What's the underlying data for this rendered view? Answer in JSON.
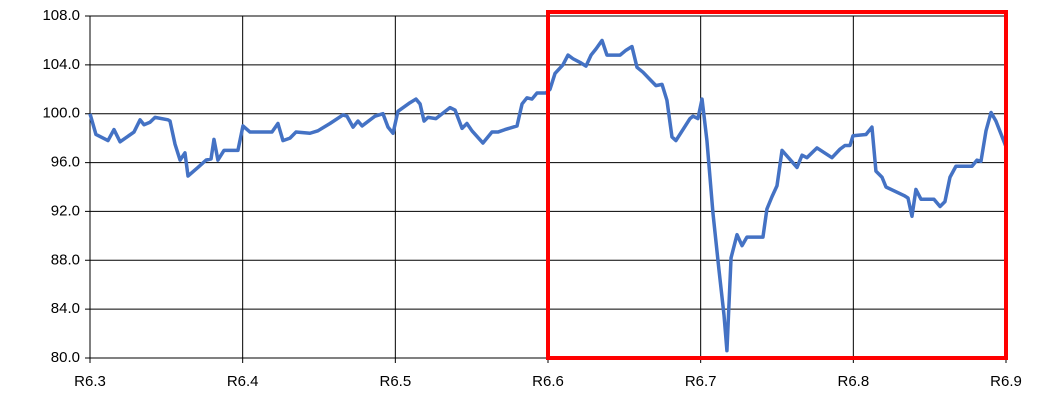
{
  "chart_data": {
    "type": "line",
    "xlim": [
      6.3,
      6.9
    ],
    "xticks": [
      {
        "value": 6.3,
        "label": "R6.3"
      },
      {
        "value": 6.4,
        "label": "R6.4"
      },
      {
        "value": 6.5,
        "label": "R6.5"
      },
      {
        "value": 6.6,
        "label": "R6.6"
      },
      {
        "value": 6.7,
        "label": "R6.7"
      },
      {
        "value": 6.8,
        "label": "R6.8"
      },
      {
        "value": 6.9,
        "label": "R6.9"
      }
    ],
    "ylim": [
      80,
      108
    ],
    "yticks": [
      {
        "value": 80,
        "label": "80.0"
      },
      {
        "value": 84,
        "label": "84.0"
      },
      {
        "value": 88,
        "label": "88.0"
      },
      {
        "value": 92,
        "label": "92.0"
      },
      {
        "value": 96,
        "label": "96.0"
      },
      {
        "value": 100,
        "label": "100.0"
      },
      {
        "value": 104,
        "label": "104.0"
      },
      {
        "value": 108,
        "label": "108.0"
      }
    ],
    "grid": true,
    "highlight": {
      "xlim": [
        6.6,
        6.9
      ],
      "color": "#ff0000"
    },
    "x": [
      6.3,
      6.3039,
      6.3118,
      6.3157,
      6.3197,
      6.3288,
      6.3328,
      6.3354,
      6.3393,
      6.3426,
      6.3511,
      6.3524,
      6.3557,
      6.359,
      6.3622,
      6.3642,
      6.3707,
      6.376,
      6.3793,
      6.3812,
      6.3838,
      6.3878,
      6.3969,
      6.4002,
      6.4048,
      6.4192,
      6.4231,
      6.4264,
      6.431,
      6.4349,
      6.4441,
      6.4493,
      6.4572,
      6.4657,
      6.4683,
      6.4723,
      6.4755,
      6.4782,
      6.4867,
      6.4919,
      6.4952,
      6.4985,
      6.5017,
      6.5096,
      6.5135,
      6.5162,
      6.5188,
      6.5214,
      6.5266,
      6.5358,
      6.5391,
      6.5437,
      6.5469,
      6.5502,
      6.5574,
      6.5633,
      6.5672,
      6.5718,
      6.5797,
      6.583,
      6.5862,
      6.5895,
      6.5928,
      6.5987,
      6.6013,
      6.6046,
      6.6098,
      6.6131,
      6.6164,
      6.621,
      6.6249,
      6.6282,
      6.6314,
      6.6354,
      6.6386,
      6.6472,
      6.6511,
      6.655,
      6.6583,
      6.6622,
      6.6668,
      6.6707,
      6.6747,
      6.6779,
      6.6812,
      6.6838,
      6.693,
      6.695,
      6.6982,
      6.7009,
      6.7041,
      6.7081,
      6.712,
      6.7153,
      6.7172,
      6.7199,
      6.7238,
      6.7271,
      6.7303,
      6.7408,
      6.7434,
      6.7467,
      6.75,
      6.7533,
      6.7631,
      6.7664,
      6.7696,
      6.7762,
      6.786,
      6.7913,
      6.7945,
      6.7978,
      6.7998,
      6.8083,
      6.8122,
      6.8148,
      6.8188,
      6.8214,
      6.8332,
      6.8358,
      6.8384,
      6.841,
      6.8443,
      6.8528,
      6.8568,
      6.86,
      6.8633,
      6.8672,
      6.8777,
      6.881,
      6.8836,
      6.8869,
      6.8902,
      6.8934,
      6.9
    ],
    "series": [
      {
        "color": "#4472c4",
        "values": [
          100.0,
          98.3,
          97.8,
          98.7,
          97.7,
          98.5,
          99.5,
          99.1,
          99.3,
          99.7,
          99.5,
          99.4,
          97.5,
          96.2,
          96.8,
          94.9,
          95.6,
          96.2,
          96.3,
          97.9,
          96.2,
          97.0,
          97.0,
          99.0,
          98.5,
          98.5,
          99.2,
          97.8,
          98.0,
          98.5,
          98.4,
          98.6,
          99.2,
          99.9,
          99.8,
          98.9,
          99.4,
          99.0,
          99.8,
          100.0,
          98.9,
          98.4,
          100.2,
          100.9,
          101.2,
          100.8,
          99.4,
          99.7,
          99.6,
          100.5,
          100.3,
          98.8,
          99.2,
          98.6,
          97.6,
          98.5,
          98.5,
          98.7,
          99.0,
          100.8,
          101.3,
          101.2,
          101.7,
          101.7,
          102.0,
          103.3,
          104.0,
          104.8,
          104.5,
          104.2,
          103.9,
          104.8,
          105.3,
          106.0,
          104.8,
          104.8,
          105.2,
          105.5,
          103.8,
          103.4,
          102.8,
          102.3,
          102.4,
          101.1,
          98.1,
          97.8,
          99.6,
          99.8,
          99.6,
          101.2,
          97.8,
          91.8,
          87.2,
          83.5,
          80.6,
          88.2,
          90.1,
          89.2,
          89.9,
          89.9,
          92.2,
          93.2,
          94.1,
          97.0,
          95.6,
          96.6,
          96.4,
          97.2,
          96.4,
          97.1,
          97.4,
          97.4,
          98.2,
          98.3,
          98.9,
          95.3,
          94.8,
          94.0,
          93.3,
          93.1,
          91.6,
          93.8,
          93.0,
          93.0,
          92.4,
          92.8,
          94.8,
          95.7,
          95.7,
          96.2,
          96.1,
          98.6,
          100.1,
          99.4,
          97.3
        ]
      }
    ]
  }
}
